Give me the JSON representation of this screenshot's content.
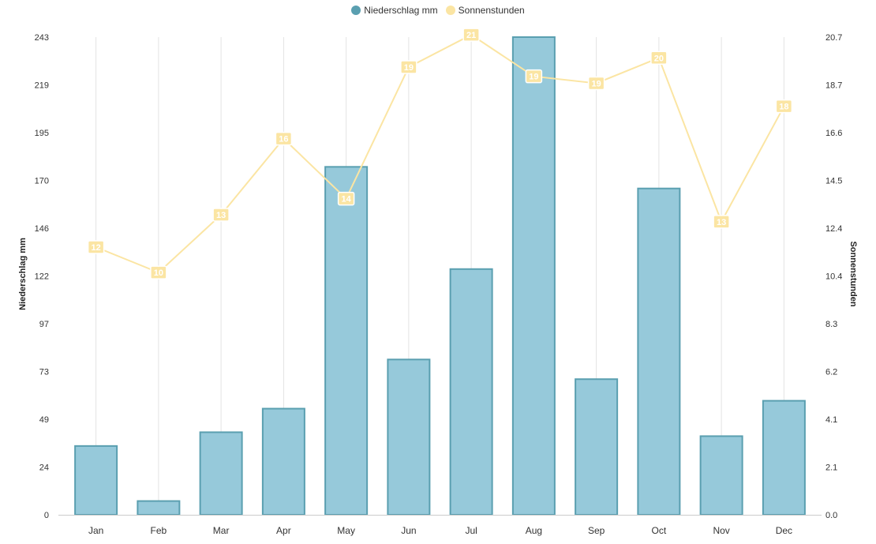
{
  "legend": {
    "items": [
      {
        "label": "Niederschlag mm",
        "color": "#5a9fb0"
      },
      {
        "label": "Sonnenstunden",
        "color": "#fbe5a3"
      }
    ]
  },
  "chart_data": {
    "type": "bar",
    "categories": [
      "Jan",
      "Feb",
      "Mar",
      "Apr",
      "May",
      "Jun",
      "Jul",
      "Aug",
      "Sep",
      "Oct",
      "Nov",
      "Dec"
    ],
    "series": [
      {
        "name": "Niederschlag mm",
        "chart_type": "bar",
        "axis": "left",
        "values": [
          35,
          7,
          42,
          54,
          177,
          79,
          125,
          243,
          69,
          166,
          40,
          58
        ],
        "fill": "#96c9da",
        "stroke": "#5a9fb0"
      },
      {
        "name": "Sonnenstunden",
        "chart_type": "line",
        "axis": "right",
        "values": [
          11.6,
          10.5,
          13.0,
          16.3,
          13.7,
          19.4,
          20.8,
          19.0,
          18.7,
          19.8,
          12.7,
          17.7
        ],
        "data_labels": [
          "12",
          "10",
          "13",
          "16",
          "14",
          "19",
          "21",
          "19",
          "19",
          "20",
          "13",
          "18"
        ],
        "color": "#fbe5a3"
      }
    ],
    "y_left": {
      "label": "Niederschlag mm",
      "range": [
        0,
        243
      ],
      "ticks": [
        "0",
        "24",
        "49",
        "73",
        "97",
        "122",
        "146",
        "170",
        "195",
        "219",
        "243"
      ]
    },
    "y_right": {
      "label": "Sonnenstunden",
      "range": [
        0,
        20.7
      ],
      "ticks": [
        "0.0",
        "2.1",
        "4.1",
        "6.2",
        "8.3",
        "10.4",
        "12.4",
        "14.5",
        "16.6",
        "18.7",
        "20.7"
      ]
    },
    "grid": {
      "vertical": true,
      "horizontal": false
    },
    "legend_position": "top-center"
  }
}
